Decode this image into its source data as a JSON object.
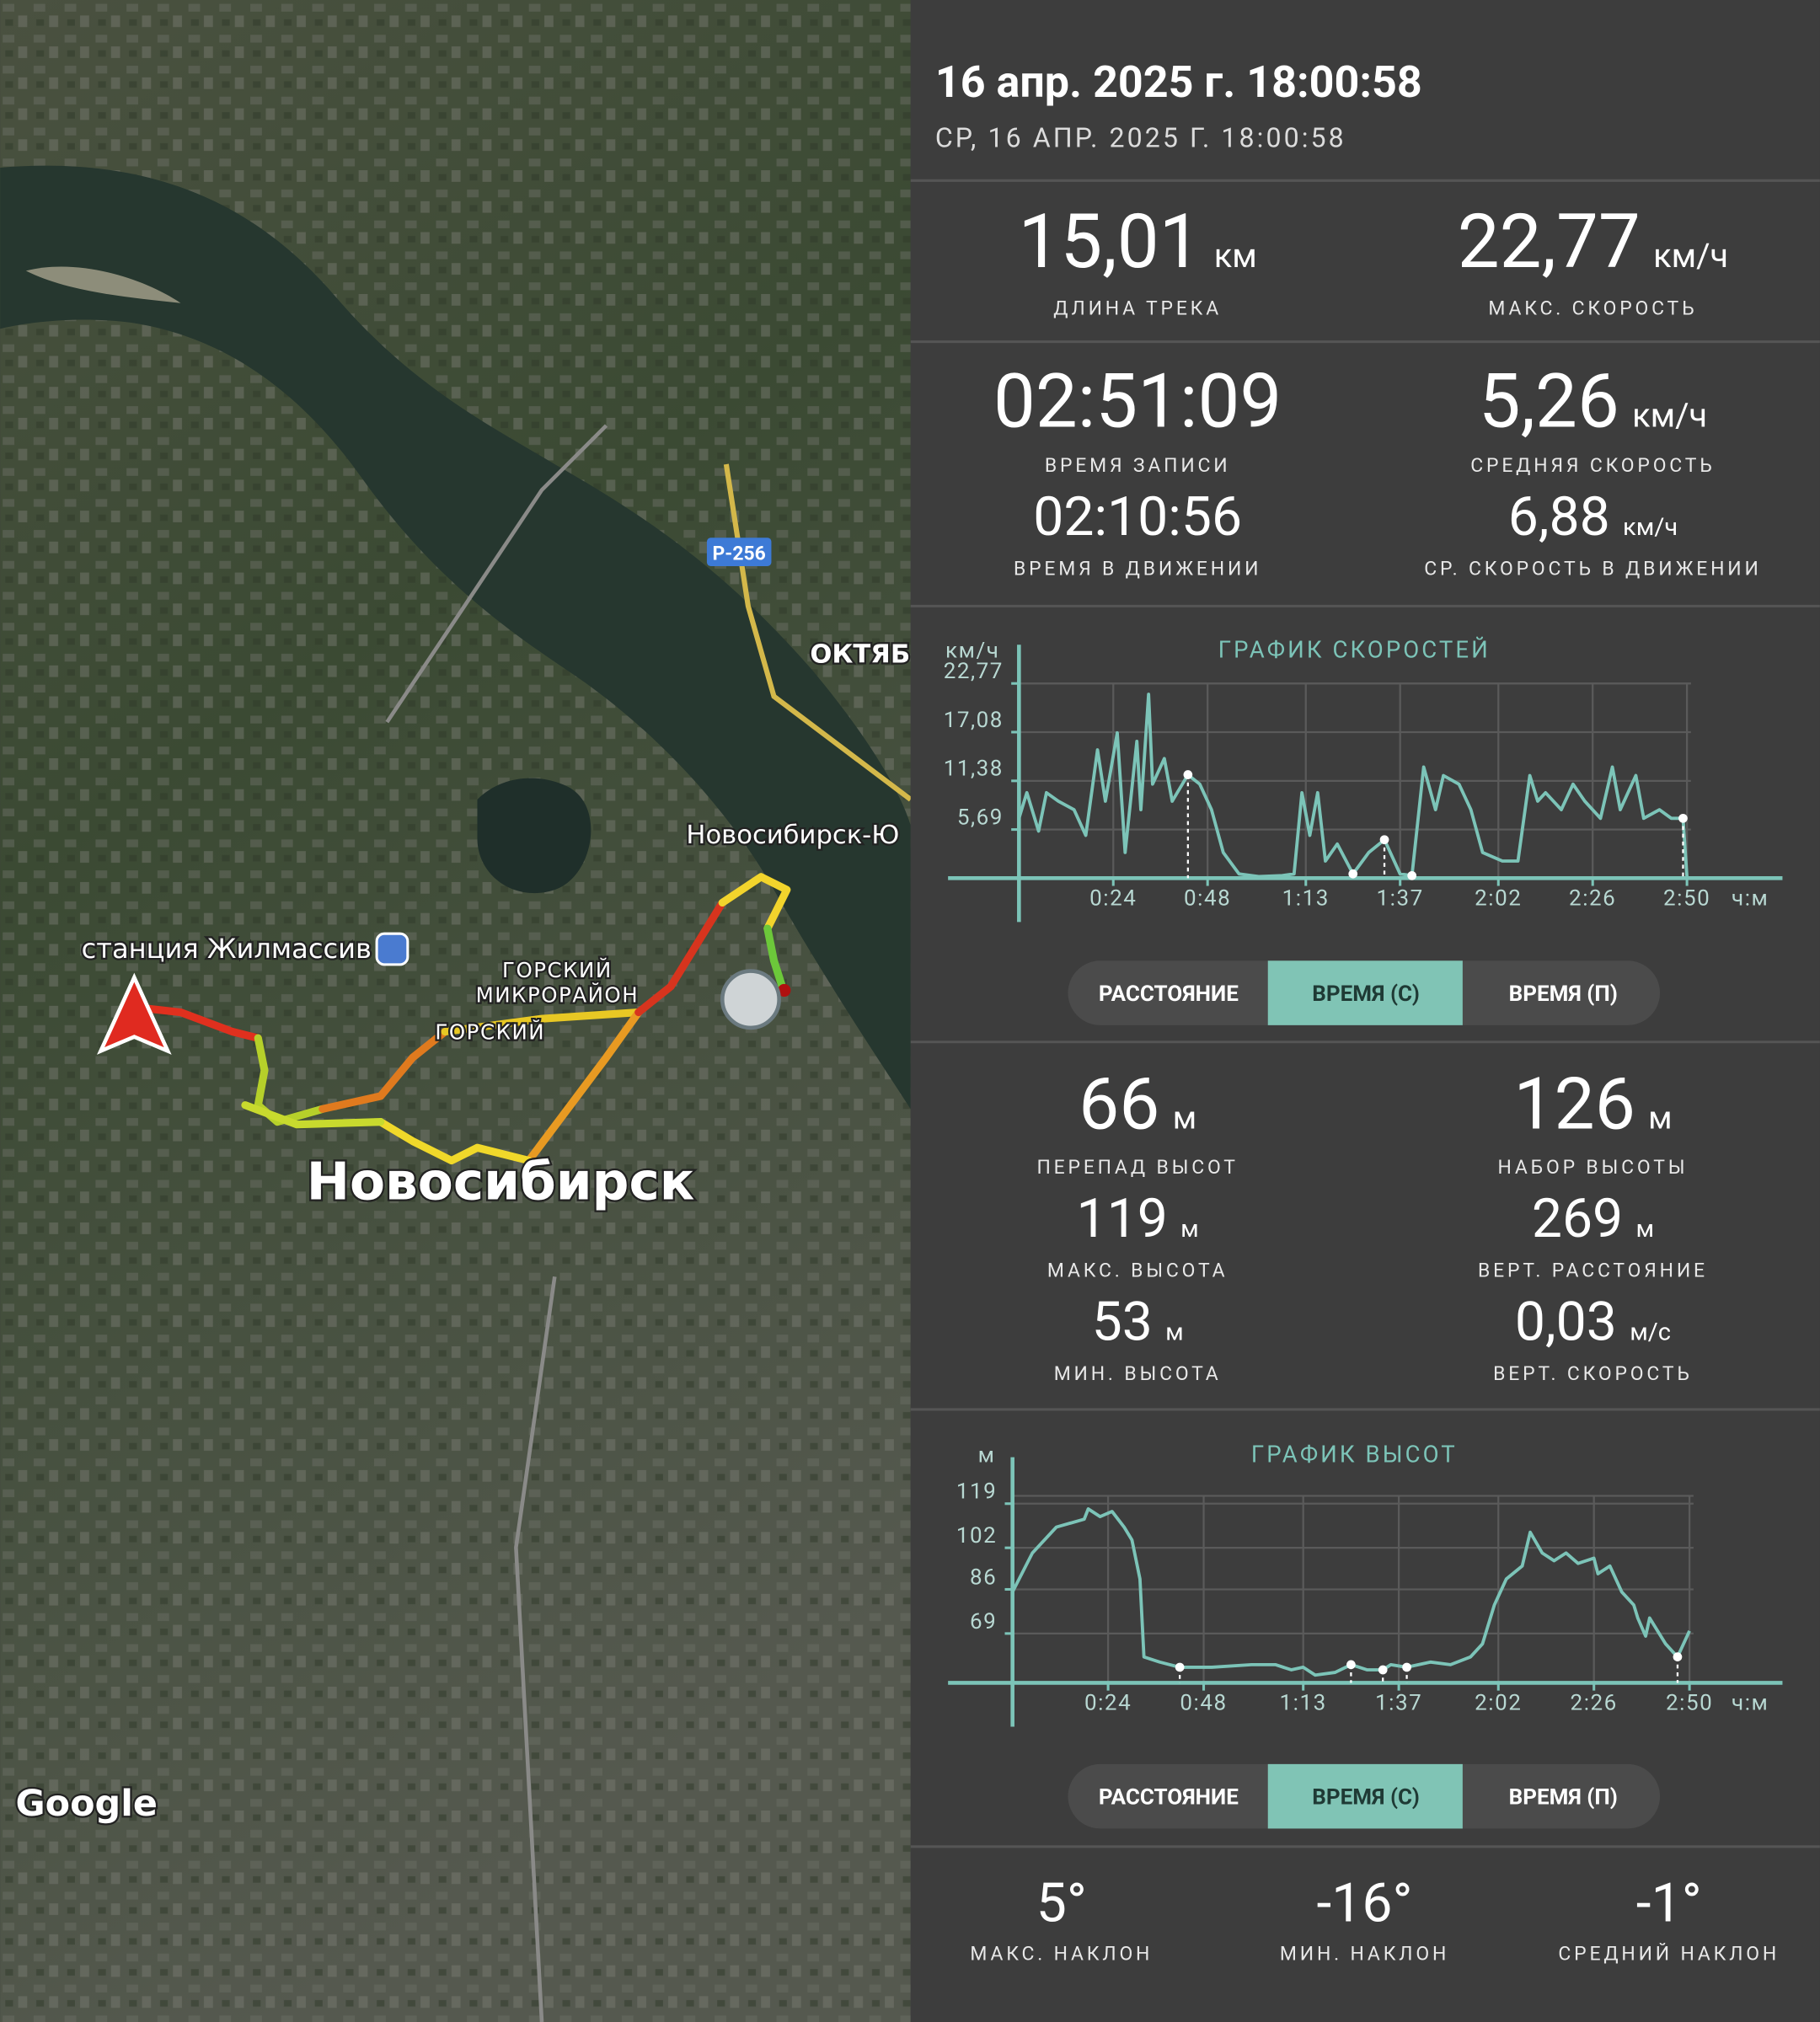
{
  "header": {
    "title": "16 апр. 2025 г. 18:00:58",
    "subtitle": "СР, 16 АПР. 2025 Г. 18:00:58"
  },
  "map": {
    "labels": [
      "станция Жилмассив",
      "ГОРСКИЙ",
      "МИКРОРАЙОН",
      "ГОРСКИЙ",
      "Новосибирск",
      "Новосибирск-Ю",
      "ОКТЯБ"
    ],
    "road": "Р-256",
    "attribution": "Google"
  },
  "track_stats": [
    {
      "value": "15,01",
      "unit": "км",
      "label": "ДЛИНА ТРЕКА"
    },
    {
      "value": "22,77",
      "unit": "км/ч",
      "label": "МАКС. СКОРОСТЬ"
    },
    {
      "value": "02:51:09",
      "unit": null,
      "label": "ВРЕМЯ ЗАПИСИ"
    },
    {
      "value": "5,26",
      "unit": "км/ч",
      "label": "СРЕДНЯЯ СКОРОСТЬ"
    },
    {
      "value": "02:10:56",
      "unit": null,
      "label": "ВРЕМЯ В ДВИЖЕНИИ"
    },
    {
      "value": "6,88",
      "unit": "км/ч",
      "label": "СР. СКОРОСТЬ В ДВИЖЕНИИ"
    }
  ],
  "speed_chart": {
    "type": "line",
    "title": "ГРАФИК СКОРОСТЕЙ",
    "y_unit": "км/ч",
    "x_unit": "ч:м",
    "color": "#7cc4b8",
    "xlim": [
      0,
      171
    ],
    "ylim": [
      0,
      22.77
    ],
    "xticks": [
      {
        "value": 24,
        "label": "0:24"
      },
      {
        "value": 48,
        "label": "0:48"
      },
      {
        "value": 73,
        "label": "1:13"
      },
      {
        "value": 97,
        "label": "1:37"
      },
      {
        "value": 122,
        "label": "2:02"
      },
      {
        "value": 146,
        "label": "2:26"
      },
      {
        "value": 170,
        "label": "2:50"
      }
    ],
    "yticks": [
      {
        "value": 5.69,
        "label": "5,69"
      },
      {
        "value": 11.38,
        "label": "11,38"
      },
      {
        "value": 17.08,
        "label": "17,08"
      },
      {
        "value": 22.77,
        "label": "22,77"
      }
    ],
    "x": [
      0,
      2,
      5,
      7,
      10,
      14,
      17,
      20,
      22,
      25,
      27,
      30,
      31,
      33,
      34,
      37,
      39,
      43,
      46,
      49,
      52,
      56,
      61,
      67,
      70,
      72,
      74,
      76,
      78,
      81,
      85,
      89,
      93,
      97,
      100,
      103,
      106,
      108,
      112,
      115,
      118,
      123,
      127,
      130,
      132,
      134,
      138,
      141,
      144,
      148,
      151,
      153,
      157,
      159,
      163,
      166,
      169,
      170
    ],
    "values": [
      7,
      10,
      5.5,
      10,
      9,
      8,
      5,
      15,
      9,
      17,
      3,
      16,
      8,
      21.5,
      11,
      14,
      9,
      12.1,
      11,
      8,
      3,
      0.5,
      0.2,
      0.3,
      0.5,
      10,
      5,
      10,
      2,
      4,
      0.5,
      3,
      4.5,
      0.5,
      0.3,
      13,
      8,
      12,
      11,
      8,
      3,
      2,
      2,
      12,
      9,
      10,
      8,
      11,
      9,
      7,
      13,
      8,
      12,
      7,
      8,
      7,
      7,
      0
    ],
    "markers": {
      "x": [
        43,
        85,
        93,
        100,
        169
      ],
      "values": [
        12.1,
        0.5,
        4.5,
        0.3,
        7
      ]
    }
  },
  "speed_toggle": [
    "РАССТОЯНИЕ",
    "ВРЕМЯ (С)",
    "ВРЕМЯ (П)"
  ],
  "elevation_stats": [
    {
      "value": "66",
      "unit": "м",
      "label": "ПЕРЕПАД ВЫСОТ"
    },
    {
      "value": "126",
      "unit": "м",
      "label": "НАБОР ВЫСОТЫ"
    },
    {
      "value": "119",
      "unit": "м",
      "label": "МАКС. ВЫСОТА"
    },
    {
      "value": "269",
      "unit": "м",
      "label": "ВЕРТ. РАССТОЯНИЕ"
    },
    {
      "value": "53",
      "unit": "м",
      "label": "МИН. ВЫСОТА"
    },
    {
      "value": "0,03",
      "unit": "м/с",
      "label": "ВЕРТ. СКОРОСТЬ"
    }
  ],
  "elevation_chart": {
    "type": "line",
    "title": "ГРАФИК ВЫСОТ",
    "y_unit": "м",
    "x_unit": "ч:м",
    "color": "#7cc4b8",
    "xlim": [
      0,
      171
    ],
    "ylim": [
      50,
      122
    ],
    "xticks": [
      {
        "value": 24,
        "label": "0:24"
      },
      {
        "value": 48,
        "label": "0:48"
      },
      {
        "value": 73,
        "label": "1:13"
      },
      {
        "value": 97,
        "label": "1:37"
      },
      {
        "value": 122,
        "label": "2:02"
      },
      {
        "value": 146,
        "label": "2:26"
      },
      {
        "value": 170,
        "label": "2:50"
      }
    ],
    "yticks": [
      69,
      86,
      102,
      119
    ],
    "x": [
      0,
      5,
      11,
      18,
      19,
      22,
      25,
      28,
      30,
      32,
      33,
      37,
      42,
      50,
      60,
      66,
      70,
      73,
      76,
      81,
      85,
      89,
      93,
      95,
      99,
      105,
      110,
      115,
      118,
      121,
      124,
      128,
      130,
      133,
      136,
      139,
      142,
      146,
      147,
      150,
      153,
      156,
      157,
      159,
      160,
      164,
      167,
      170
    ],
    "values": [
      85,
      100,
      110,
      113,
      117,
      114,
      116,
      110,
      105,
      90,
      60,
      58,
      56,
      56,
      57,
      57,
      55,
      56,
      53,
      54,
      57,
      55,
      55,
      57,
      56,
      58,
      57,
      60,
      65,
      80,
      90,
      95,
      108,
      100,
      97,
      100,
      96,
      98,
      92,
      95,
      85,
      80,
      75,
      68,
      75,
      65,
      60,
      70
    ],
    "markers": {
      "x": [
        42,
        85,
        93,
        99,
        167
      ],
      "values": [
        56,
        57,
        55,
        56,
        60
      ]
    }
  },
  "elevation_toggle": [
    "РАССТОЯНИЕ",
    "ВРЕМЯ (С)",
    "ВРЕМЯ (П)"
  ],
  "slope_stats": [
    {
      "value": "5°",
      "label": "МАКС. НАКЛОН"
    },
    {
      "value": "-16°",
      "label": "МИН. НАКЛОН"
    },
    {
      "value": "-1°",
      "label": "СРЕДНИЙ НАКЛОН"
    }
  ]
}
